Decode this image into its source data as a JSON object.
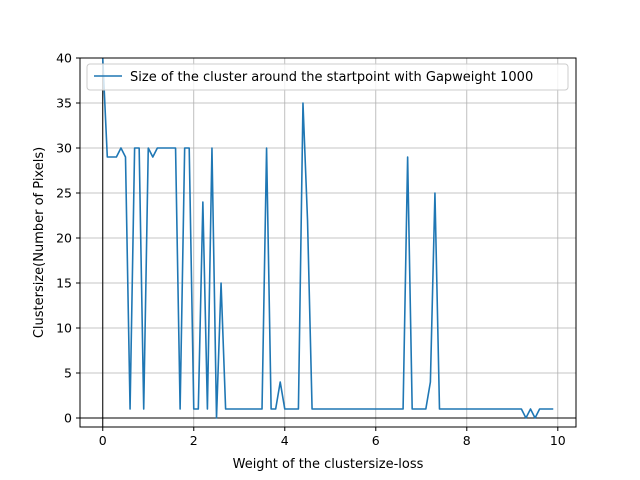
{
  "chart_data": {
    "type": "line",
    "title": "",
    "xlabel": "Weight of the clustersize-loss",
    "ylabel": "Clustersize(Number of Pixels)",
    "xlim": [
      -0.5,
      10.4
    ],
    "ylim": [
      -1,
      40
    ],
    "xticks": [
      0,
      2,
      4,
      6,
      8,
      10
    ],
    "xtick_labels": [
      "0",
      "2",
      "4",
      "6",
      "8",
      "10"
    ],
    "yticks": [
      0,
      5,
      10,
      15,
      20,
      25,
      30,
      35,
      40
    ],
    "ytick_labels": [
      "0",
      "5",
      "10",
      "15",
      "20",
      "25",
      "30",
      "35",
      "40"
    ],
    "grid": true,
    "legend_position": "top-right",
    "series": [
      {
        "name": "Size of the cluster around the startpoint with Gapweight 1000",
        "color": "#1f77b4",
        "x": [
          0.0,
          0.1,
          0.2,
          0.3,
          0.4,
          0.5,
          0.6,
          0.7,
          0.8,
          0.9,
          1.0,
          1.1,
          1.2,
          1.3,
          1.4,
          1.5,
          1.6,
          1.7,
          1.8,
          1.9,
          2.0,
          2.1,
          2.2,
          2.3,
          2.4,
          2.5,
          2.6,
          2.7,
          2.8,
          2.9,
          3.0,
          3.1,
          3.2,
          3.3,
          3.4,
          3.5,
          3.6,
          3.7,
          3.8,
          3.9,
          4.0,
          4.1,
          4.2,
          4.3,
          4.4,
          4.5,
          4.6,
          4.7,
          4.8,
          4.9,
          5.0,
          5.1,
          5.2,
          5.3,
          5.4,
          5.5,
          5.6,
          5.7,
          5.8,
          5.9,
          6.0,
          6.1,
          6.2,
          6.3,
          6.4,
          6.5,
          6.6,
          6.7,
          6.8,
          6.9,
          7.0,
          7.1,
          7.2,
          7.3,
          7.4,
          7.5,
          7.6,
          7.7,
          7.8,
          7.9,
          8.0,
          8.1,
          8.2,
          8.3,
          8.4,
          8.5,
          8.6,
          8.7,
          8.8,
          8.9,
          9.0,
          9.1,
          9.2,
          9.3,
          9.4,
          9.5,
          9.6,
          9.7,
          9.8,
          9.9
        ],
        "values": [
          40,
          29,
          29,
          29,
          30,
          29,
          1,
          30,
          30,
          1,
          30,
          29,
          30,
          30,
          30,
          30,
          30,
          1,
          30,
          30,
          1,
          1,
          24,
          1,
          30,
          0,
          15,
          1,
          1,
          1,
          1,
          1,
          1,
          1,
          1,
          1,
          30,
          1,
          1,
          4,
          1,
          1,
          1,
          1,
          35,
          22,
          1,
          1,
          1,
          1,
          1,
          1,
          1,
          1,
          1,
          1,
          1,
          1,
          1,
          1,
          1,
          1,
          1,
          1,
          1,
          1,
          1,
          29,
          1,
          1,
          1,
          1,
          4,
          25,
          1,
          1,
          1,
          1,
          1,
          1,
          1,
          1,
          1,
          1,
          1,
          1,
          1,
          1,
          1,
          1,
          1,
          1,
          1,
          0,
          1,
          0,
          1,
          1,
          1,
          1
        ]
      }
    ]
  }
}
